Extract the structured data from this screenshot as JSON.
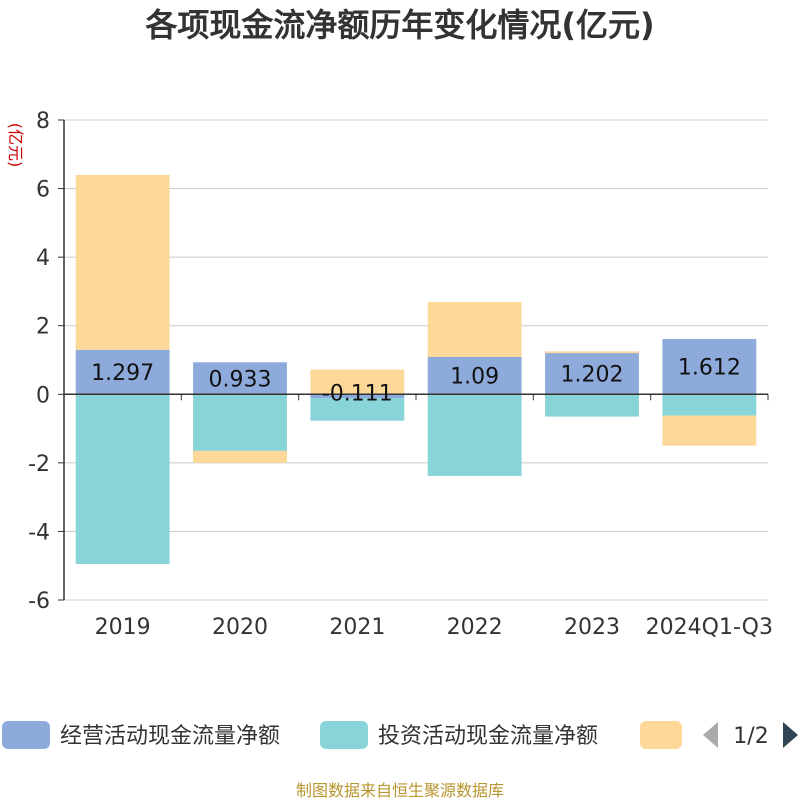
{
  "chart_data": {
    "type": "bar",
    "stacked": true,
    "title": "各项现金流净额历年变化情况(亿元)",
    "ylabel": "(亿元)",
    "xlabel": "",
    "categories": [
      "2019",
      "2020",
      "2021",
      "2022",
      "2023",
      "2024Q1-Q3"
    ],
    "ylim": [
      -6,
      8
    ],
    "yticks": [
      -6,
      -4,
      -2,
      0,
      2,
      4,
      6,
      8
    ],
    "grid": true,
    "series": [
      {
        "name": "经营活动现金流量净额",
        "color": "#8eaadb",
        "values": [
          1.297,
          0.933,
          -0.111,
          1.09,
          1.202,
          1.612
        ],
        "labels": [
          "1.297",
          "0.933",
          "-0.111",
          "1.09",
          "1.202",
          "1.612"
        ]
      },
      {
        "name": "投资活动现金流量净额",
        "color": "#88d4d8",
        "values": [
          -4.95,
          -1.65,
          -0.66,
          -2.38,
          -0.65,
          -0.62
        ]
      },
      {
        "name": "",
        "color": "#fdd899",
        "values": [
          5.1,
          -0.35,
          0.72,
          1.6,
          0.05,
          -0.88
        ]
      }
    ],
    "legend": {
      "position": "bottom",
      "page": "1/2"
    }
  },
  "footer": {
    "source": "制图数据来自恒生聚源数据库"
  }
}
